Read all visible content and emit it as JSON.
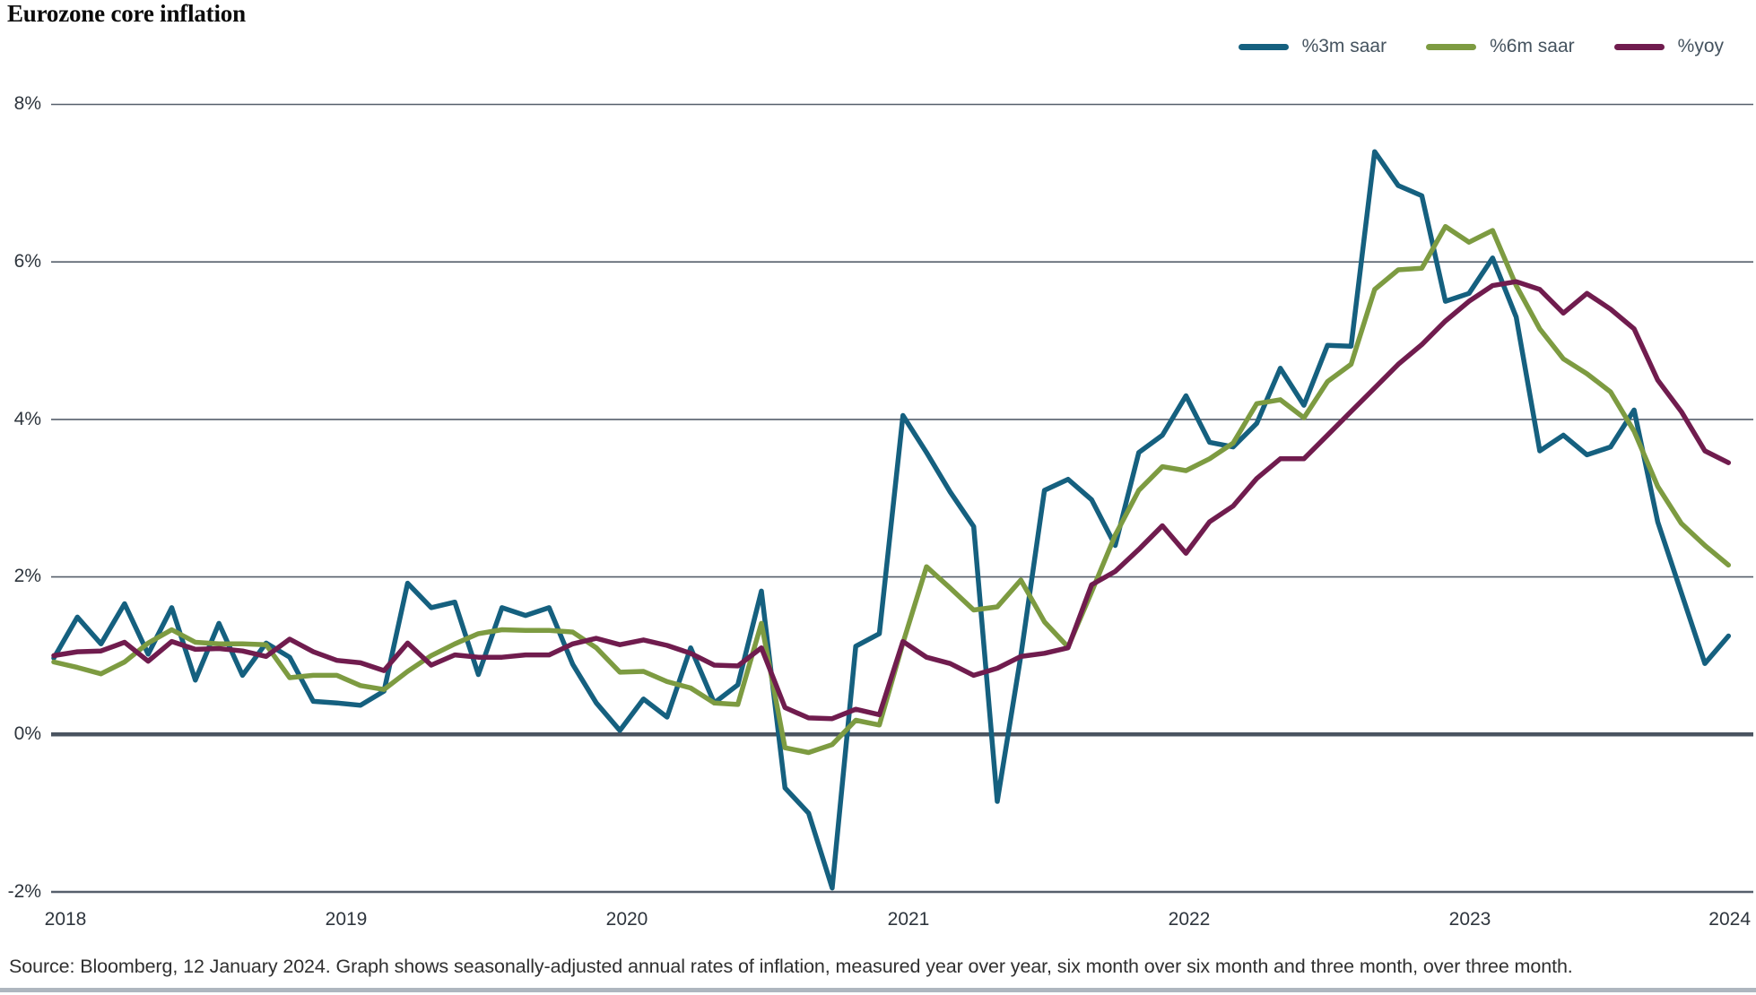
{
  "title": "Eurozone core inflation",
  "source_note": "Source: Bloomberg, 12 January 2024. Graph shows seasonally-adjusted annual rates of inflation, measured year over year, six month over six month and three month, over three month.",
  "colors": {
    "blue": "#15607f",
    "green": "#7d9b41",
    "maroon": "#701c4e",
    "gridline": "#565f6b",
    "zero_line": "#4a5460",
    "tick_text": "#2e353d",
    "legend_text": "#45535f"
  },
  "legend": [
    {
      "label": "%3m saar",
      "color": "#15607f"
    },
    {
      "label": "%6m saar",
      "color": "#7d9b41"
    },
    {
      "label": "%yoy",
      "color": "#701c4e"
    }
  ],
  "chart_data": {
    "type": "line",
    "title": "Eurozone core inflation",
    "x_unit": "month",
    "x_range": [
      "2018-01",
      "2023-12"
    ],
    "x_tick_labels": [
      "2018",
      "2019",
      "2020",
      "2021",
      "2022",
      "2023",
      "2024"
    ],
    "y_tick_labels": [
      "8%",
      "6%",
      "4%",
      "2%",
      "0%",
      "-2%"
    ],
    "y_tick_values": [
      8,
      6,
      4,
      2,
      0,
      -2
    ],
    "ylim": [
      -2,
      8
    ],
    "grid": "horizontal",
    "zero_line_emphasized": true,
    "legend_position": "top-right",
    "series": [
      {
        "name": "%3m saar",
        "color": "#15607f",
        "values": [
          0.97,
          1.49,
          1.15,
          1.66,
          1.02,
          1.61,
          0.69,
          1.41,
          0.75,
          1.16,
          0.98,
          0.42,
          0.4,
          0.37,
          0.55,
          1.92,
          1.61,
          1.68,
          0.76,
          1.61,
          1.51,
          1.61,
          0.89,
          0.4,
          0.05,
          0.45,
          0.22,
          1.1,
          0.4,
          0.63,
          1.82,
          -0.68,
          -1.0,
          -1.95,
          1.12,
          1.28,
          4.05,
          3.58,
          3.08,
          2.64,
          -0.85,
          1.0,
          3.1,
          3.24,
          2.98,
          2.4,
          3.58,
          3.8,
          4.3,
          3.71,
          3.65,
          3.95,
          4.65,
          4.18,
          4.94,
          4.93,
          7.4,
          6.97,
          6.84,
          5.5,
          5.6,
          6.05,
          5.3,
          3.6,
          3.8,
          3.55,
          3.65,
          4.12,
          2.7,
          1.8,
          0.9,
          1.25
        ]
      },
      {
        "name": "%6m saar",
        "color": "#7d9b41",
        "values": [
          0.92,
          0.85,
          0.77,
          0.92,
          1.16,
          1.33,
          1.17,
          1.15,
          1.15,
          1.14,
          0.72,
          0.75,
          0.75,
          0.62,
          0.57,
          0.8,
          1.0,
          1.15,
          1.28,
          1.33,
          1.32,
          1.32,
          1.3,
          1.1,
          0.79,
          0.8,
          0.67,
          0.59,
          0.4,
          0.38,
          1.41,
          -0.17,
          -0.23,
          -0.13,
          0.18,
          0.12,
          1.16,
          2.13,
          1.86,
          1.58,
          1.62,
          1.96,
          1.43,
          1.11,
          1.81,
          2.53,
          3.1,
          3.4,
          3.35,
          3.5,
          3.7,
          4.2,
          4.25,
          4.02,
          4.48,
          4.7,
          5.65,
          5.9,
          5.92,
          6.45,
          6.25,
          6.4,
          5.7,
          5.15,
          4.77,
          4.58,
          4.35,
          3.85,
          3.15,
          2.68,
          2.4,
          2.15
        ]
      },
      {
        "name": "%yoy",
        "color": "#701c4e",
        "values": [
          1.0,
          1.05,
          1.06,
          1.17,
          0.93,
          1.18,
          1.08,
          1.09,
          1.06,
          0.99,
          1.21,
          1.05,
          0.94,
          0.91,
          0.81,
          1.16,
          0.88,
          1.01,
          0.98,
          0.98,
          1.01,
          1.01,
          1.15,
          1.22,
          1.14,
          1.2,
          1.13,
          1.03,
          0.88,
          0.87,
          1.1,
          0.34,
          0.21,
          0.2,
          0.32,
          0.25,
          1.18,
          0.98,
          0.9,
          0.75,
          0.84,
          0.99,
          1.03,
          1.1,
          1.9,
          2.07,
          2.35,
          2.65,
          2.3,
          2.7,
          2.9,
          3.25,
          3.5,
          3.5,
          3.8,
          4.1,
          4.4,
          4.7,
          4.95,
          5.25,
          5.5,
          5.7,
          5.75,
          5.65,
          5.35,
          5.6,
          5.4,
          5.15,
          4.5,
          4.1,
          3.6,
          3.45
        ]
      }
    ]
  }
}
